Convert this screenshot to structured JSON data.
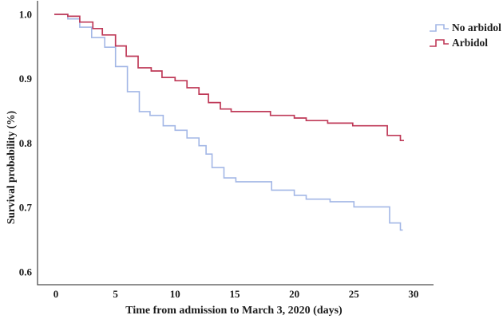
{
  "figure": {
    "background": "#ffffff",
    "axis_color": "#4d4d4d",
    "text_color": "#1c1c1c"
  },
  "chart_data": {
    "type": "line",
    "subtype": "kaplan-meier-step-survival",
    "title": "",
    "xlabel": "Time from admission to March 3, 2020 (days)",
    "ylabel": "Survival probability (%)",
    "xlim": [
      0,
      30
    ],
    "ylim": [
      0.6,
      1.0
    ],
    "x_ticks": [
      "0",
      "5",
      "10",
      "15",
      "20",
      "25",
      "30"
    ],
    "y_ticks": [
      "1.0",
      "0.9",
      "0.8",
      "0.7",
      "0.6"
    ],
    "y_tick_values": [
      1.0,
      0.9,
      0.8,
      0.7,
      0.6
    ],
    "x_tick_values": [
      0,
      5,
      10,
      15,
      20,
      25,
      30
    ],
    "grid": false,
    "legend_position": "top-right",
    "series": [
      {
        "name": "No arbidol",
        "color": "#a3b7e6",
        "line_width": 1.6,
        "end": 29.1,
        "points": [
          [
            0,
            1.0
          ],
          [
            1,
            0.993
          ],
          [
            2,
            0.98
          ],
          [
            3,
            0.964
          ],
          [
            4.1,
            0.949
          ],
          [
            5,
            0.919
          ],
          [
            6,
            0.88
          ],
          [
            7,
            0.849
          ],
          [
            7.9,
            0.843
          ],
          [
            9,
            0.827
          ],
          [
            10,
            0.82
          ],
          [
            11,
            0.808
          ],
          [
            12,
            0.796
          ],
          [
            12.6,
            0.783
          ],
          [
            13.1,
            0.762
          ],
          [
            14.1,
            0.746
          ],
          [
            15.1,
            0.74
          ],
          [
            18.1,
            0.727
          ],
          [
            20,
            0.719
          ],
          [
            21,
            0.713
          ],
          [
            23,
            0.709
          ],
          [
            25,
            0.701
          ],
          [
            28,
            0.676
          ],
          [
            28.9,
            0.665
          ]
        ]
      },
      {
        "name": "Arbidol",
        "color": "#bf3a58",
        "line_width": 1.7,
        "end": 29.2,
        "points": [
          [
            0,
            1.0
          ],
          [
            1,
            0.997
          ],
          [
            2,
            0.988
          ],
          [
            3.1,
            0.978
          ],
          [
            3.9,
            0.968
          ],
          [
            5,
            0.951
          ],
          [
            5.9,
            0.935
          ],
          [
            6.9,
            0.917
          ],
          [
            8,
            0.912
          ],
          [
            8.9,
            0.902
          ],
          [
            10,
            0.897
          ],
          [
            11,
            0.886
          ],
          [
            12,
            0.876
          ],
          [
            12.8,
            0.863
          ],
          [
            13.8,
            0.853
          ],
          [
            14.7,
            0.849
          ],
          [
            18,
            0.843
          ],
          [
            20,
            0.839
          ],
          [
            21,
            0.835
          ],
          [
            22.8,
            0.831
          ],
          [
            24.9,
            0.827
          ],
          [
            27.8,
            0.812
          ],
          [
            28.9,
            0.804
          ]
        ]
      }
    ]
  }
}
